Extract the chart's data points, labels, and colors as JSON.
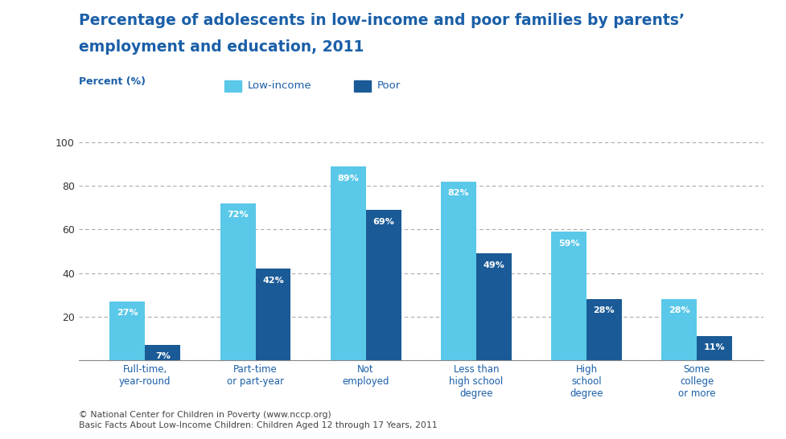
{
  "title_line1": "Percentage of adolescents in low-income and poor families by parents’",
  "title_line2": "employment and education, 2011",
  "title_color": "#1a5fa8",
  "ylabel_text": "Percent (%)",
  "categories": [
    "Full-time,\nyear-round",
    "Part-time\nor part-year",
    "Not\nemployed",
    "Less than\nhigh school\ndegree",
    "High\nschool\ndegree",
    "Some\ncollege\nor more"
  ],
  "low_income_values": [
    27,
    72,
    89,
    82,
    59,
    28
  ],
  "poor_values": [
    7,
    42,
    69,
    49,
    28,
    11
  ],
  "low_income_color": "#5ac8e8",
  "poor_color": "#1a5a96",
  "bar_width": 0.32,
  "ylim": [
    0,
    105
  ],
  "yticks": [
    0,
    20,
    40,
    60,
    80,
    100
  ],
  "grid_color": "#aaaaaa",
  "background_color": "#ffffff",
  "legend_low_income": "Low-income",
  "legend_poor": "Poor",
  "title_fontsize": 13.5,
  "label_fontsize": 8.5,
  "value_fontsize": 8,
  "tick_fontsize": 9,
  "footer_line1": "© National Center for Children in Poverty (www.nccp.org)",
  "footer_line2": "Basic Facts About Low-Income Children: Children Aged 12 through 17 Years, 2011"
}
